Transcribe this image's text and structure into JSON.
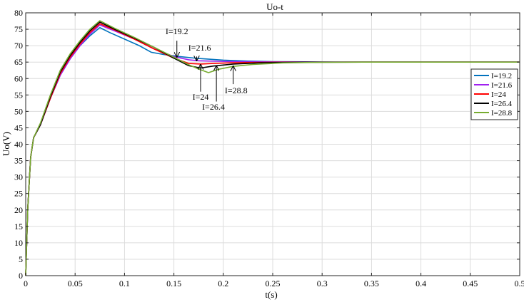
{
  "chart_data": {
    "type": "line",
    "title": "Uo-t",
    "xlabel": "t(s)",
    "ylabel": "Uo(V)",
    "xlim": [
      0,
      0.5
    ],
    "ylim": [
      0,
      80
    ],
    "xticks": [
      0,
      0.05,
      0.1,
      0.15,
      0.2,
      0.25,
      0.3,
      0.35,
      0.4,
      0.45,
      0.5
    ],
    "xtick_labels": [
      "0",
      "0.05",
      "0.1",
      "0.15",
      "0.2",
      "0.25",
      "0.3",
      "0.35",
      "0.4",
      "0.45",
      "0.5"
    ],
    "yticks": [
      0,
      5,
      10,
      15,
      20,
      25,
      30,
      35,
      40,
      45,
      50,
      55,
      60,
      65,
      70,
      75,
      80
    ],
    "ytick_labels": [
      "0",
      "5",
      "10",
      "15",
      "20",
      "25",
      "30",
      "35",
      "40",
      "45",
      "50",
      "55",
      "60",
      "65",
      "70",
      "75",
      "80"
    ],
    "grid": true,
    "legend_position": "right",
    "series": [
      {
        "name": "I=19.2",
        "color": "#0072BD",
        "points": [
          [
            0,
            0
          ],
          [
            0.002,
            20
          ],
          [
            0.005,
            36
          ],
          [
            0.008,
            42
          ],
          [
            0.015,
            46
          ],
          [
            0.025,
            54
          ],
          [
            0.035,
            61
          ],
          [
            0.045,
            66
          ],
          [
            0.055,
            70
          ],
          [
            0.065,
            73
          ],
          [
            0.075,
            75.5
          ],
          [
            0.085,
            74
          ],
          [
            0.1,
            72
          ],
          [
            0.115,
            70
          ],
          [
            0.127,
            68
          ],
          [
            0.14,
            67.3
          ],
          [
            0.155,
            66.7
          ],
          [
            0.175,
            66.1
          ],
          [
            0.2,
            65.6
          ],
          [
            0.225,
            65.3
          ],
          [
            0.25,
            65.15
          ],
          [
            0.3,
            65.05
          ],
          [
            0.35,
            65
          ],
          [
            0.4,
            65
          ],
          [
            0.45,
            65
          ],
          [
            0.5,
            65
          ]
        ]
      },
      {
        "name": "I=21.6",
        "color": "#A020F0",
        "points": [
          [
            0,
            0
          ],
          [
            0.002,
            20
          ],
          [
            0.005,
            36
          ],
          [
            0.008,
            42
          ],
          [
            0.015,
            46
          ],
          [
            0.025,
            54
          ],
          [
            0.035,
            61
          ],
          [
            0.045,
            66
          ],
          [
            0.055,
            70
          ],
          [
            0.065,
            73.5
          ],
          [
            0.075,
            76.3
          ],
          [
            0.09,
            74.5
          ],
          [
            0.11,
            72
          ],
          [
            0.13,
            69
          ],
          [
            0.15,
            66.7
          ],
          [
            0.165,
            65.7
          ],
          [
            0.175,
            65.4
          ],
          [
            0.2,
            65.2
          ],
          [
            0.25,
            65.05
          ],
          [
            0.3,
            65
          ],
          [
            0.35,
            65
          ],
          [
            0.4,
            65
          ],
          [
            0.45,
            65
          ],
          [
            0.5,
            65
          ]
        ]
      },
      {
        "name": "I=24",
        "color": "#FF0000",
        "points": [
          [
            0,
            0
          ],
          [
            0.002,
            20
          ],
          [
            0.005,
            36
          ],
          [
            0.008,
            42
          ],
          [
            0.015,
            46
          ],
          [
            0.025,
            54
          ],
          [
            0.035,
            61.5
          ],
          [
            0.045,
            66.5
          ],
          [
            0.055,
            70.5
          ],
          [
            0.065,
            74
          ],
          [
            0.075,
            76.7
          ],
          [
            0.09,
            74.8
          ],
          [
            0.11,
            72
          ],
          [
            0.13,
            69
          ],
          [
            0.15,
            66.2
          ],
          [
            0.165,
            64.6
          ],
          [
            0.177,
            64.4
          ],
          [
            0.19,
            64.6
          ],
          [
            0.21,
            64.8
          ],
          [
            0.25,
            64.95
          ],
          [
            0.3,
            65
          ],
          [
            0.35,
            65
          ],
          [
            0.4,
            65
          ],
          [
            0.45,
            65
          ],
          [
            0.5,
            65
          ]
        ]
      },
      {
        "name": "I=26.4",
        "color": "#000000",
        "points": [
          [
            0,
            0
          ],
          [
            0.002,
            20
          ],
          [
            0.005,
            36
          ],
          [
            0.008,
            42
          ],
          [
            0.015,
            46
          ],
          [
            0.025,
            54.5
          ],
          [
            0.035,
            62
          ],
          [
            0.045,
            67
          ],
          [
            0.055,
            71
          ],
          [
            0.065,
            74.5
          ],
          [
            0.075,
            77.2
          ],
          [
            0.09,
            75
          ],
          [
            0.11,
            72.3
          ],
          [
            0.13,
            69.5
          ],
          [
            0.15,
            66.2
          ],
          [
            0.165,
            63.9
          ],
          [
            0.177,
            63.2
          ],
          [
            0.19,
            63.8
          ],
          [
            0.21,
            64.4
          ],
          [
            0.24,
            64.8
          ],
          [
            0.28,
            64.95
          ],
          [
            0.35,
            65
          ],
          [
            0.4,
            65
          ],
          [
            0.45,
            65
          ],
          [
            0.5,
            65
          ]
        ]
      },
      {
        "name": "I=28.8",
        "color": "#77AC30",
        "points": [
          [
            0,
            0
          ],
          [
            0.002,
            20
          ],
          [
            0.005,
            36
          ],
          [
            0.008,
            42
          ],
          [
            0.015,
            46.5
          ],
          [
            0.025,
            55
          ],
          [
            0.035,
            62.5
          ],
          [
            0.045,
            67.5
          ],
          [
            0.055,
            71.5
          ],
          [
            0.065,
            75
          ],
          [
            0.075,
            77.6
          ],
          [
            0.09,
            75.3
          ],
          [
            0.11,
            72.5
          ],
          [
            0.13,
            69.5
          ],
          [
            0.15,
            66.5
          ],
          [
            0.165,
            64.2
          ],
          [
            0.175,
            62.9
          ],
          [
            0.185,
            61.8
          ],
          [
            0.195,
            62.8
          ],
          [
            0.21,
            63.7
          ],
          [
            0.23,
            64.3
          ],
          [
            0.26,
            64.75
          ],
          [
            0.3,
            64.95
          ],
          [
            0.35,
            65
          ],
          [
            0.4,
            65
          ],
          [
            0.45,
            65
          ],
          [
            0.5,
            65
          ]
        ]
      }
    ],
    "annotations": [
      {
        "text": "I=19.2",
        "text_at": [
          0.153,
          73.5
        ],
        "arrow_from": [
          0.153,
          71.5
        ],
        "arrow_to": [
          0.153,
          66.6
        ]
      },
      {
        "text": "I=21.6",
        "text_at": [
          0.176,
          68.5
        ],
        "arrow_from": [
          0.173,
          66.7
        ],
        "arrow_to": [
          0.173,
          65.5
        ]
      },
      {
        "text": "I=24",
        "text_at": [
          0.177,
          53.5
        ],
        "arrow_from": [
          0.177,
          56
        ],
        "arrow_to": [
          0.177,
          64.2
        ]
      },
      {
        "text": "I=26.4",
        "text_at": [
          0.19,
          50.5
        ],
        "arrow_from": [
          0.193,
          53
        ],
        "arrow_to": [
          0.193,
          63.8
        ]
      },
      {
        "text": "I=28.8",
        "text_at": [
          0.213,
          55.5
        ],
        "arrow_from": [
          0.21,
          58.3
        ],
        "arrow_to": [
          0.21,
          63.7
        ]
      }
    ]
  }
}
